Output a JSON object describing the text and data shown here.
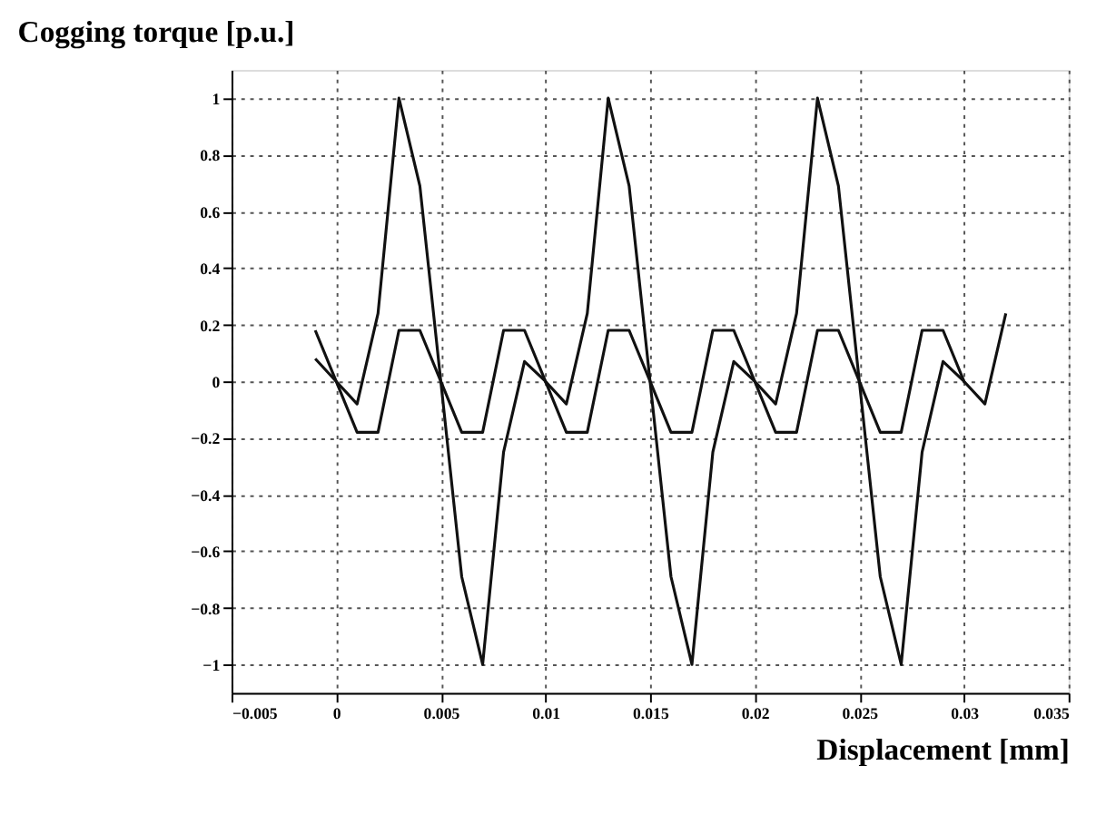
{
  "chart_data": {
    "type": "line",
    "title": "Cogging torque [p.u.]",
    "xlabel": "Displacement [mm]",
    "xlim": [
      -0.005,
      0.035
    ],
    "xticks": [
      -0.005,
      0,
      0.005,
      0.01,
      0.015,
      0.02,
      0.025,
      0.03,
      0.035
    ],
    "ylim": [
      -1.1,
      1.1
    ],
    "yticks": [
      -1,
      -0.8,
      -0.6,
      -0.4,
      -0.2,
      0,
      0.2,
      0.4,
      0.6,
      0.8,
      1
    ],
    "grid": true,
    "legend": false,
    "marker": "none",
    "line_style": "solid",
    "series": [
      {
        "color": "#111111",
        "x": [
          -0.001,
          0,
          0.001,
          0.002,
          0.003,
          0.004,
          0.005,
          0.006,
          0.007,
          0.008,
          0.009,
          0.01,
          0.011,
          0.012,
          0.013,
          0.014,
          0.015,
          0.016,
          0.017,
          0.018,
          0.019,
          0.02,
          0.021,
          0.022,
          0.023,
          0.024,
          0.025,
          0.026,
          0.027,
          0.028,
          0.029,
          0.03,
          0.031,
          0.032
        ],
        "values": [
          0.08,
          0,
          -0.08,
          0.24,
          1,
          0.69,
          0,
          -0.69,
          -1,
          -0.25,
          0.07,
          0,
          -0.08,
          0.24,
          1,
          0.69,
          0,
          -0.69,
          -1,
          -0.25,
          0.07,
          0,
          -0.08,
          0.24,
          1,
          0.69,
          0,
          -0.69,
          -1,
          -0.25,
          0.07,
          0,
          -0.08,
          0.24
        ]
      },
      {
        "color": "#111111",
        "x": [
          -0.001,
          0,
          0.001,
          0.002,
          0.003,
          0.004,
          0.005,
          0.006,
          0.007,
          0.008,
          0.009,
          0.01,
          0.011,
          0.012,
          0.013,
          0.014,
          0.015,
          0.016,
          0.017,
          0.018,
          0.019,
          0.02,
          0.021,
          0.022,
          0.023,
          0.024,
          0.025,
          0.026,
          0.027,
          0.028,
          0.029,
          0.03
        ],
        "values": [
          0.18,
          0,
          -0.18,
          -0.18,
          0.18,
          0.18,
          0,
          -0.18,
          -0.18,
          0.18,
          0.18,
          0,
          -0.18,
          -0.18,
          0.18,
          0.18,
          0,
          -0.18,
          -0.18,
          0.18,
          0.18,
          0,
          -0.18,
          -0.18,
          0.18,
          0.18,
          0,
          -0.18,
          -0.18,
          0.18,
          0.18,
          0
        ]
      }
    ]
  }
}
